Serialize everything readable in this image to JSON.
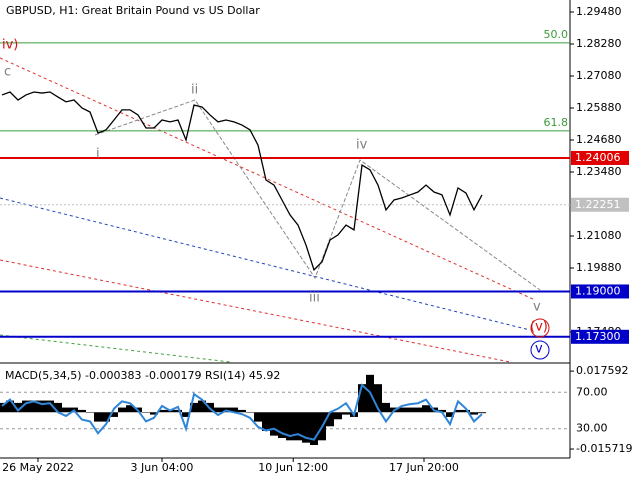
{
  "chart_data": [
    {
      "type": "line",
      "title": "GBPUSD, H1:  Great Britain Pound vs US Dollar",
      "color": "#000000",
      "values": [
        1.2637,
        1.2648,
        1.2618,
        1.2637,
        1.2648,
        1.2644,
        1.2648,
        1.2629,
        1.2611,
        1.2618,
        1.2588,
        1.2573,
        1.2494,
        1.2506,
        1.2543,
        1.2581,
        1.2581,
        1.2562,
        1.2513,
        1.2513,
        1.2543,
        1.2536,
        1.2543,
        1.2468,
        1.2599,
        1.2592,
        1.2562,
        1.2536,
        1.2543,
        1.2536,
        1.2524,
        1.2506,
        1.2449,
        1.2318,
        1.2299,
        1.2243,
        1.2187,
        1.2149,
        1.2074,
        1.1981,
        1.2011,
        1.2093,
        1.2112,
        1.2149,
        1.2131,
        1.2374,
        1.2356,
        1.2299,
        1.2206,
        1.2243,
        1.2251,
        1.2262,
        1.2273,
        1.2299,
        1.2273,
        1.2262,
        1.2187,
        1.2288,
        1.2269,
        1.2206,
        1.2262
      ],
      "xlim": [
        0,
        60
      ],
      "xticks": [
        {
          "value": 4.5,
          "label": "26 May 2022"
        },
        {
          "value": 20,
          "label": "3 Jun 04:00"
        },
        {
          "value": 36.4,
          "label": "10 Jun 12:00"
        },
        {
          "value": 52.75,
          "label": "17 Jun 20:00"
        }
      ],
      "ylim": [
        1.16355,
        1.29855
      ],
      "yticks": [
        {
          "value": 1.2948,
          "label": "1.29480"
        },
        {
          "value": 1.2828,
          "label": "1.28280"
        },
        {
          "value": 1.2708,
          "label": "1.27080"
        },
        {
          "value": 1.2588,
          "label": "1.25880"
        },
        {
          "value": 1.2468,
          "label": "1.24680"
        },
        {
          "value": 1.2348,
          "label": "1.23480"
        },
        {
          "value": 1.2108,
          "label": "1.21080"
        },
        {
          "value": 1.1988,
          "label": "1.19880"
        },
        {
          "value": 1.1748,
          "label": "1.17480"
        }
      ],
      "fib_levels": [
        {
          "value": 1.2832,
          "name": "50.0",
          "color": "#3c9a3c"
        },
        {
          "value": 1.2502,
          "name": "61.8",
          "color": "#3c9a3c"
        }
      ],
      "price_levels": [
        {
          "value": 1.24006,
          "label": "1.24006",
          "color": "#e00000"
        },
        {
          "value": 1.22251,
          "label": "1.22251",
          "color": "#c0c0c0"
        },
        {
          "value": 1.19,
          "label": "1.19000",
          "color": "#0000c8"
        },
        {
          "value": 1.173,
          "label": "1.17300",
          "color": "#0000c8"
        }
      ],
      "annotations": [
        {
          "text": "iv)",
          "color": "#d01010"
        },
        {
          "text": "c",
          "color": "#808080"
        },
        {
          "text": "ii",
          "color": "#808080"
        },
        {
          "text": "i",
          "color": "#808080"
        },
        {
          "text": "iii",
          "color": "#808080"
        },
        {
          "text": "iv",
          "color": "#808080"
        },
        {
          "text": "v",
          "color": "#808080"
        },
        {
          "text": "(v)",
          "color": "#d01010"
        },
        {
          "text": "v",
          "color": "#0000c8"
        }
      ]
    },
    {
      "type": "bar",
      "title": "MACD(5,34,5) -0.000383 -0.000179 RSI(14) 45.92",
      "xlim": [
        0,
        60
      ],
      "ylim": [
        -0.0187,
        0.0202
      ],
      "yticks": [
        0.017592,
        -0.015719
      ],
      "y2lim": [
        0,
        100
      ],
      "y2ticks": [
        {
          "value": 70,
          "label": "70.00"
        },
        {
          "value": 30,
          "label": "30.00"
        }
      ],
      "series": [
        {
          "color": "#000000",
          "values": [
            0.004,
            0.005,
            0.004,
            0.005,
            0.005,
            0.005,
            0.005,
            0.004,
            0.002,
            0.002,
            0.001,
            0,
            -0.004,
            -0.004,
            -0.002,
            0.002,
            0.003,
            0.002,
            0,
            -0.001,
            0.001,
            0.001,
            0.001,
            -0.002,
            0.004,
            0.005,
            0.004,
            0.002,
            0.002,
            0.002,
            0.001,
            0,
            -0.004,
            -0.008,
            -0.01,
            -0.011,
            -0.012,
            -0.012,
            -0.013,
            -0.014,
            -0.012,
            -0.006,
            -0.003,
            -0.001,
            -0.002,
            0.012,
            0.016,
            0.012,
            0.004,
            0.002,
            0.002,
            0.002,
            0.002,
            0.003,
            0.002,
            0.001,
            -0.002,
            0.001,
            0.001,
            -0.001,
            -0.0004
          ]
        },
        {
          "color": "#2f86d8",
          "axis": "y2",
          "values": [
            55,
            62,
            50,
            58,
            60,
            57,
            58,
            48,
            44,
            50,
            40,
            38,
            25,
            35,
            52,
            60,
            58,
            50,
            38,
            42,
            55,
            50,
            54,
            30,
            68,
            62,
            52,
            45,
            50,
            48,
            46,
            42,
            32,
            28,
            30,
            25,
            22,
            24,
            20,
            18,
            32,
            48,
            52,
            58,
            45,
            78,
            70,
            52,
            38,
            50,
            55,
            57,
            58,
            62,
            50,
            48,
            35,
            60,
            52,
            38,
            46
          ]
        }
      ]
    }
  ]
}
